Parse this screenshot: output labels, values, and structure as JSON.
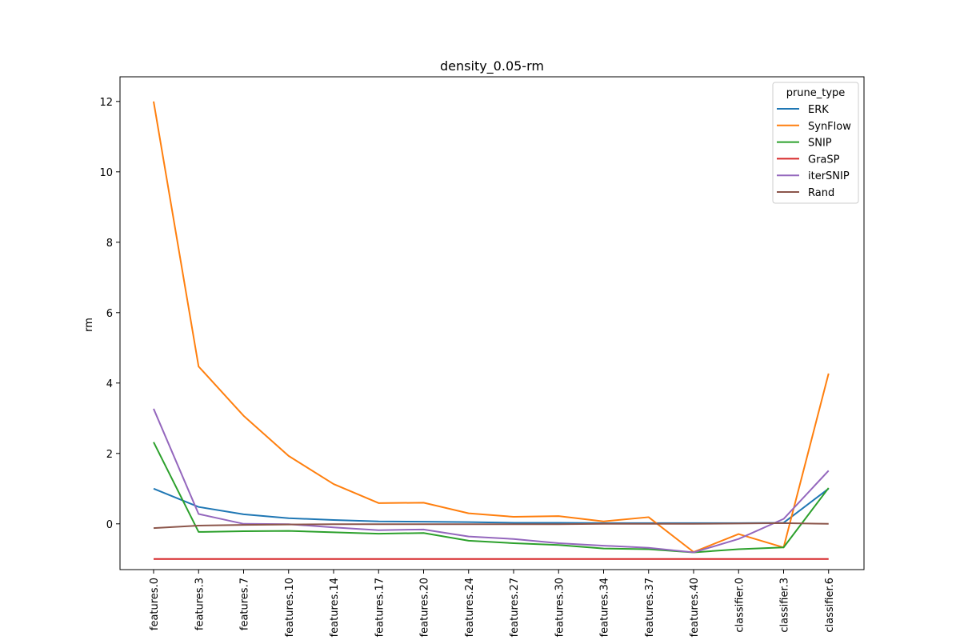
{
  "chart_data": {
    "type": "line",
    "title": "density_0.05-rm",
    "xlabel": "",
    "ylabel": "rm",
    "categories": [
      "features.0",
      "features.3",
      "features.7",
      "features.10",
      "features.14",
      "features.17",
      "features.20",
      "features.24",
      "features.27",
      "features.30",
      "features.34",
      "features.37",
      "features.40",
      "classifier.0",
      "classifier.3",
      "classifier.6"
    ],
    "ylim": [
      -1.3,
      12.7
    ],
    "yticks": [
      0,
      2,
      4,
      6,
      8,
      10,
      12
    ],
    "grid": false,
    "legend": {
      "title": "prune_type",
      "placement": "top-right"
    },
    "series": [
      {
        "name": "ERK",
        "color": "#1f77b4",
        "values": [
          1.0,
          0.48,
          0.27,
          0.16,
          0.11,
          0.07,
          0.06,
          0.05,
          0.03,
          0.03,
          0.02,
          0.02,
          0.02,
          0.02,
          0.03,
          1.0
        ]
      },
      {
        "name": "SynFlow",
        "color": "#ff7f0e",
        "values": [
          12.0,
          4.47,
          3.07,
          1.93,
          1.13,
          0.59,
          0.6,
          0.3,
          0.2,
          0.22,
          0.07,
          0.19,
          -0.8,
          -0.29,
          -0.67,
          4.27
        ]
      },
      {
        "name": "SNIP",
        "color": "#2ca02c",
        "values": [
          2.32,
          -0.23,
          -0.21,
          -0.2,
          -0.24,
          -0.28,
          -0.26,
          -0.48,
          -0.55,
          -0.6,
          -0.7,
          -0.72,
          -0.81,
          -0.72,
          -0.67,
          1.02
        ]
      },
      {
        "name": "GraSP",
        "color": "#d62728",
        "values": [
          -1.0,
          -1.0,
          -1.0,
          -1.0,
          -1.0,
          -1.0,
          -1.0,
          -1.0,
          -1.0,
          -1.0,
          -1.0,
          -1.0,
          -1.0,
          -1.0,
          -1.0,
          -1.0
        ]
      },
      {
        "name": "iterSNIP",
        "color": "#9467bd",
        "values": [
          3.27,
          0.28,
          0.0,
          -0.01,
          -0.1,
          -0.18,
          -0.16,
          -0.36,
          -0.43,
          -0.55,
          -0.62,
          -0.68,
          -0.81,
          -0.43,
          0.14,
          1.51
        ]
      },
      {
        "name": "Rand",
        "color": "#8c564b",
        "values": [
          -0.12,
          -0.05,
          -0.03,
          -0.02,
          -0.01,
          -0.01,
          -0.01,
          -0.01,
          -0.01,
          -0.01,
          0.0,
          0.0,
          0.0,
          0.01,
          0.02,
          0.0
        ]
      }
    ]
  }
}
